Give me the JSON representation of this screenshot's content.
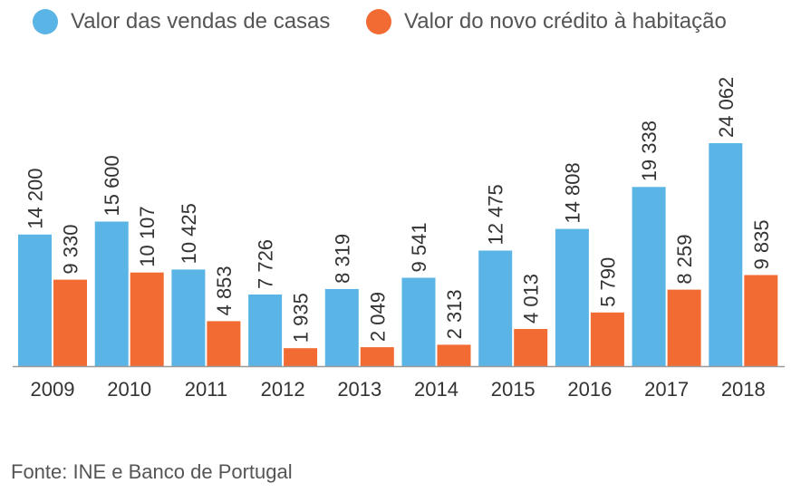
{
  "chart_data": {
    "type": "bar",
    "categories": [
      "2009",
      "2010",
      "2011",
      "2012",
      "2013",
      "2014",
      "2015",
      "2016",
      "2017",
      "2018"
    ],
    "series": [
      {
        "name": "Valor das vendas de casas",
        "color": "#5ab4e5",
        "values": [
          14200,
          15600,
          10425,
          7726,
          8319,
          9541,
          12475,
          14808,
          19338,
          24062
        ],
        "labels": [
          "14 200",
          "15 600",
          "10 425",
          "7 726",
          "8 319",
          "9 541",
          "12 475",
          "14 808",
          "19 338",
          "24 062"
        ]
      },
      {
        "name": "Valor do novo crédito à habitação",
        "color": "#f26b33",
        "values": [
          9330,
          10107,
          4853,
          1935,
          2049,
          2313,
          4013,
          5790,
          8259,
          9835
        ],
        "labels": [
          "9 330",
          "10 107",
          "4 853",
          "1 935",
          "2 049",
          "2 313",
          "4 013",
          "5 790",
          "8 259",
          "9 835"
        ]
      }
    ],
    "ylim": [
      0,
      24062
    ],
    "grid": false,
    "legend_position": "top",
    "axis_color": "#999999",
    "label_color": "#333333"
  },
  "source": "Fonte: INE e Banco de Portugal"
}
